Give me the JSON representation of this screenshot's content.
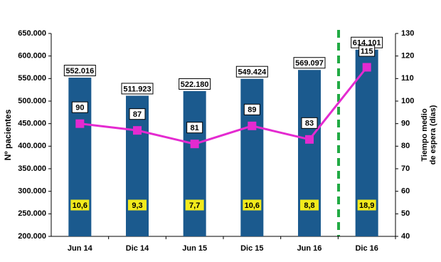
{
  "chart_data": {
    "type": "bar",
    "categories": [
      "Jun 14",
      "Dic 14",
      "Jun 15",
      "Dic 15",
      "Jun 16",
      "Dic 16"
    ],
    "series": [
      {
        "color": "#1b5a8e",
        "values": [
          552016,
          511923,
          522180,
          549424,
          569097,
          614101
        ],
        "value_labels": [
          "552.016",
          "511.923",
          "522.180",
          "549.424",
          "569.097",
          "614.101"
        ]
      },
      {
        "type": "line",
        "axis": "y2",
        "color": "#e42ad0",
        "values": [
          90,
          87,
          81,
          89,
          83,
          115
        ]
      }
    ],
    "inner_labels": {
      "color": "#f2ea1c",
      "values": [
        10.6,
        9.3,
        7.7,
        10.6,
        8.8,
        18.9
      ],
      "value_labels": [
        "10,6",
        "9,3",
        "7,7",
        "10,6",
        "8,8",
        "18,9"
      ]
    },
    "ylabel": "Nº pacientes",
    "y2label": [
      "Tiempo medio",
      "de espera (días)"
    ],
    "ylim": [
      200000,
      650000
    ],
    "yticks": [
      {
        "value": 200000,
        "label": "200.000"
      },
      {
        "value": 250000,
        "label": "250.000"
      },
      {
        "value": 300000,
        "label": "300.000"
      },
      {
        "value": 350000,
        "label": "350.000"
      },
      {
        "value": 400000,
        "label": "400.000"
      },
      {
        "value": 450000,
        "label": "450.000"
      },
      {
        "value": 500000,
        "label": "500.000"
      },
      {
        "value": 550000,
        "label": "550.000"
      },
      {
        "value": 600000,
        "label": "600.000"
      },
      {
        "value": 650000,
        "label": "650.000"
      }
    ],
    "y2lim": [
      40,
      130
    ],
    "y2ticks": [
      40,
      50,
      60,
      70,
      80,
      90,
      100,
      110,
      120,
      130
    ],
    "grid": false
  }
}
